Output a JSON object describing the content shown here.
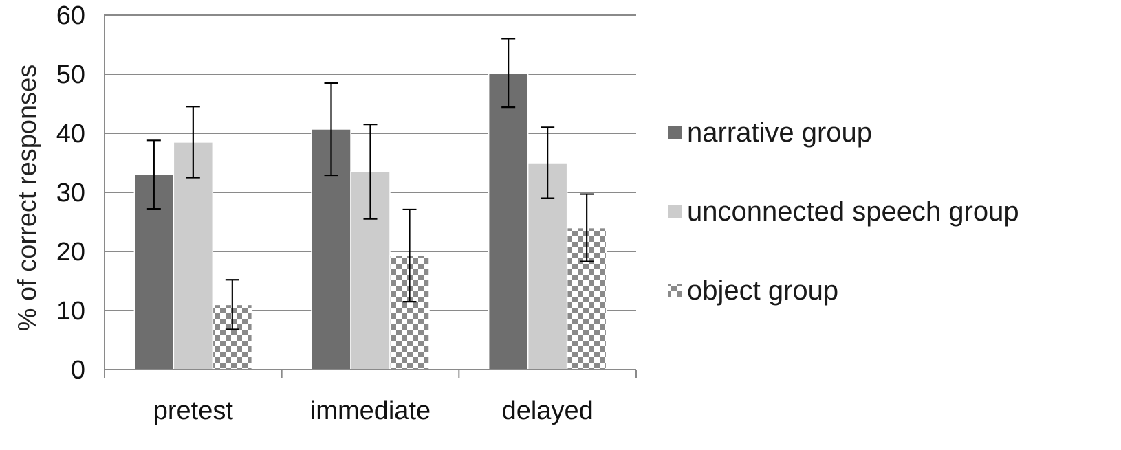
{
  "chart_data": {
    "type": "bar",
    "categories": [
      "pretest",
      "immediate",
      "delayed"
    ],
    "ylabel": "% of correct responses",
    "ylim": [
      0,
      60
    ],
    "yticks": [
      0,
      10,
      20,
      30,
      40,
      50,
      60
    ],
    "grid": true,
    "legend_position": "right",
    "series": [
      {
        "name": "narrative group",
        "values": [
          33,
          40.7,
          50.2
        ],
        "error": [
          5.8,
          7.8,
          5.8
        ],
        "color": "#6e6e6e",
        "pattern": "solid"
      },
      {
        "name": "unconnected speech group",
        "values": [
          38.5,
          33.5,
          35
        ],
        "error": [
          6,
          8,
          6
        ],
        "color": "#cccccc",
        "pattern": "solid"
      },
      {
        "name": "object group",
        "values": [
          11,
          19.3,
          24
        ],
        "error": [
          4.2,
          7.8,
          5.7
        ],
        "color": "#8a8a8a",
        "pattern": "checker"
      }
    ]
  }
}
